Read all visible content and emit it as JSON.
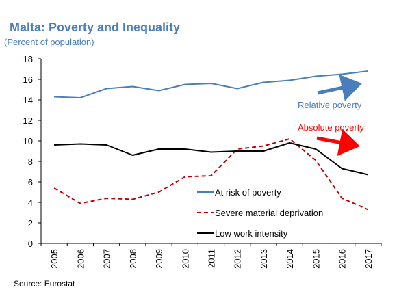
{
  "chart_data": {
    "type": "line",
    "title": "Malta: Poverty and Inequality",
    "subtitle": "(Percent of population)",
    "x": [
      "2005",
      "2006",
      "2007",
      "2008",
      "2009",
      "2010",
      "2011",
      "2012",
      "2013",
      "2014",
      "2015",
      "2016",
      "2017"
    ],
    "ylim": [
      0,
      18
    ],
    "yticks": [
      0,
      2,
      4,
      6,
      8,
      10,
      12,
      14,
      16,
      18
    ],
    "grid": false,
    "legend_position": "lower-center",
    "series": [
      {
        "name": "At risk of poverty",
        "color": "#4a7ebb",
        "dash": "solid",
        "values": [
          14.3,
          14.2,
          15.1,
          15.3,
          14.9,
          15.5,
          15.6,
          15.1,
          15.7,
          15.9,
          16.3,
          16.5,
          16.8
        ]
      },
      {
        "name": "Severe material deprivation",
        "color": "#c00000",
        "dash": "dashed",
        "values": [
          5.4,
          3.9,
          4.4,
          4.3,
          5.0,
          6.5,
          6.6,
          9.2,
          9.5,
          10.2,
          8.1,
          4.4,
          3.3
        ]
      },
      {
        "name": "Low work intensity",
        "color": "#000000",
        "dash": "solid",
        "values": [
          9.6,
          9.7,
          9.6,
          8.6,
          9.2,
          9.2,
          8.9,
          9.0,
          9.0,
          9.8,
          9.2,
          7.3,
          6.7
        ]
      }
    ],
    "annotations": [
      {
        "text": "Relative poverty",
        "color": "#4a7ebb",
        "arrow_color": "#4a7ebb"
      },
      {
        "text": "Absolute poverty",
        "color": "#ff0000",
        "arrow_color": "#ff0000"
      }
    ]
  },
  "source": "Source: Eurostat"
}
